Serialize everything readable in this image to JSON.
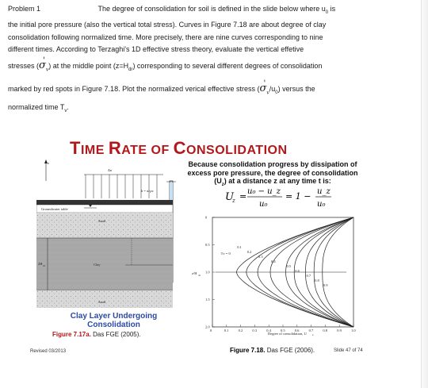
{
  "problem": {
    "label": "Problem 1",
    "line1": "The degree of consolidation for soil is defined in the slide below where u",
    "line1_sub": "0",
    "line1_end": " is",
    "line2": "the initial pore pressure (also the vertical total stress).  Curves in Figure 7.18 are about degree of clay",
    "line3": "consolidation following normalized time. More precisely, there are nine curves corresponding to nine",
    "line4": "different times.  According to Terzaghi's 1D effective stress theory, evaluate the vertical effetive",
    "line5_a": "stresses (",
    "sigma": "σ",
    "sigma_sub": "v",
    "line5_b": ") at the middle point (z=H",
    "line5_sub": "dr",
    "line5_c": ") corresponding to several different degrees of consolidation",
    "line6": "marked by red spots in Figure 7.18. Plot the normalized verical effective stress (",
    "line6_b": "/u",
    "line6_sub": "0",
    "line6_c": ") versus the",
    "line7": "normalized time T",
    "line7_sub": "v",
    "line7_end": "."
  },
  "slide": {
    "title_big1": "T",
    "title_small1": "IME ",
    "title_big2": "R",
    "title_small2": "ATE OF ",
    "title_big3": "C",
    "title_small3": "ONSOLIDATION",
    "desc1": "Because consolidation progress by dissipation of",
    "desc2": "excess pore pressure, the degree of consolidation",
    "desc3": "(U",
    "desc3_sub": "z",
    "desc3_end": ") at a distance z at any time t is:",
    "formula_lhs": "U",
    "formula_lhs_sub": "z",
    "formula_num": "u₀ − u_z",
    "formula_den": "u₀",
    "formula_mid": "= 1 −",
    "formula_num2": "u_z",
    "formula_den2": "u₀",
    "caption_line1": "Clay Layer Undergoing",
    "caption_line2": "Consolidation",
    "fig_left_bold": "Figure 7.17a.",
    "fig_left_rest": " Das FGE (2005).",
    "revised": "Revised 03/2013",
    "fig_right_bold": "Figure 7.18.",
    "fig_right_rest": "  Das FGE (2006).",
    "slide_num": "Slide 47 of 74",
    "soil_labels": {
      "delta_sigma": "Δσ",
      "groundwater": "Groundwater table",
      "sand_top": "Sand",
      "clay": "Clay",
      "sand_bottom": "Sand",
      "hdr": "2H",
      "hdr_sub": "dr",
      "h": "h = u/γw",
      "z": "z"
    }
  },
  "chart_data": {
    "type": "line",
    "xlabel": "Degree of consolidation, U",
    "xlabel_sub": "z",
    "ylabel": "z/H",
    "ylabel_sub": "dr",
    "xlim": [
      0,
      1
    ],
    "ylim": [
      0,
      2
    ],
    "x_ticks": [
      "0",
      "0.1",
      "0.2",
      "0.3",
      "0.4",
      "0.5",
      "0.6",
      "0.7",
      "0.8",
      "0.9",
      "1.0"
    ],
    "y_ticks": [
      "0",
      "0.5",
      "1.0",
      "1.5",
      "2.0"
    ],
    "tv_label": "T",
    "tv_label_sub": "v",
    "tv_label_end": " = 0",
    "series": [
      {
        "name": "0.1",
        "uz_mid": 0.17
      },
      {
        "name": "0.2",
        "uz_mid": 0.24
      },
      {
        "name": "0.3",
        "uz_mid": 0.32
      },
      {
        "name": "0.4",
        "uz_mid": 0.41
      },
      {
        "name": "0.5",
        "uz_mid": 0.52
      },
      {
        "name": "0.6",
        "uz_mid": 0.58
      },
      {
        "name": "0.7",
        "uz_mid": 0.66
      },
      {
        "name": "0.8",
        "uz_mid": 0.72
      },
      {
        "name": "0.9",
        "uz_mid": 0.78
      }
    ]
  }
}
